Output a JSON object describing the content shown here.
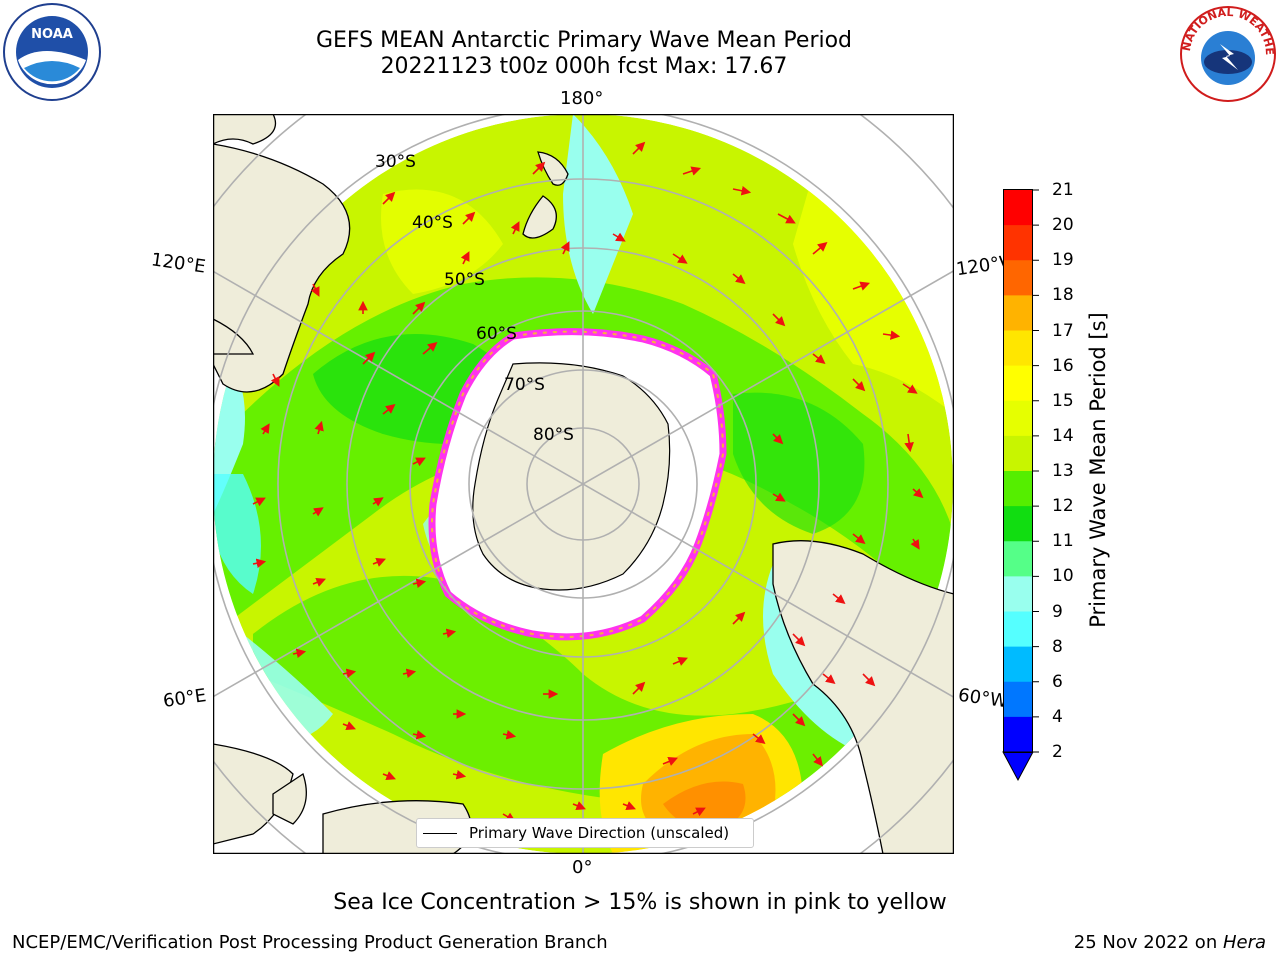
{
  "header": {
    "title_line1": "GEFS MEAN Antarctic Primary Wave Mean Period",
    "title_line2": "20221123 t00z 000h fcst   Max: 17.67"
  },
  "logos": {
    "left": "NOAA",
    "right": "NATIONAL WEATHER SERVICE"
  },
  "map": {
    "projection": "south-polar-stereographic",
    "longitude_labels": [
      "180°",
      "120°E",
      "120°W",
      "60°E",
      "60°W",
      "0°"
    ],
    "latitude_labels": [
      "30°S",
      "40°S",
      "50°S",
      "60°S",
      "70°S",
      "80°S"
    ],
    "colors": {
      "land": "#efedda",
      "ice_edge": "#ff33ee",
      "ice_fringe": "#f6b23c",
      "grid": "#b0b0b0",
      "arrow": "#ee1111"
    },
    "legend_label": "Primary Wave Direction (unscaled)"
  },
  "colorbar": {
    "title": "Primary Wave Mean Period [s]",
    "ticks": [
      "21",
      "20",
      "19",
      "18",
      "17",
      "16",
      "15",
      "14",
      "13",
      "12",
      "11",
      "10",
      "9",
      "8",
      "6",
      "4",
      "2"
    ],
    "colors": [
      "#ff0000",
      "#ff3300",
      "#ff6600",
      "#ff8c00",
      "#ffb300",
      "#ffe600",
      "#ffff00",
      "#e6ff00",
      "#c8f500",
      "#99f000",
      "#55ee00",
      "#11dd11",
      "#55ff88",
      "#99ffee",
      "#55ffff",
      "#00ffff",
      "#00bbff",
      "#0077ff",
      "#0000ff"
    ]
  },
  "footer": {
    "note": "Sea Ice Concentration > 15% is shown in pink to yellow",
    "credit": "NCEP/EMC/Verification Post Processing Product Generation Branch",
    "run_date": "25 Nov 2022 on ",
    "host": "Hera"
  }
}
